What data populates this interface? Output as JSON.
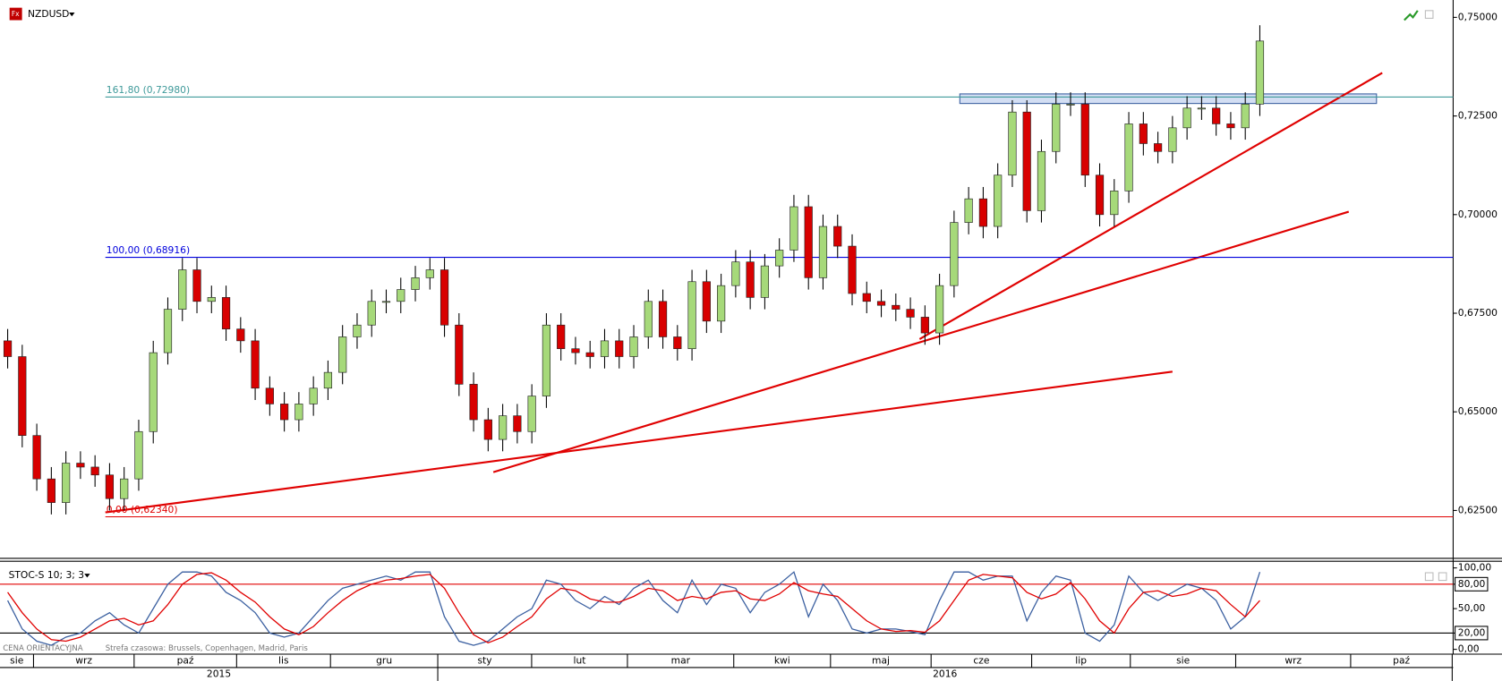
{
  "chart_data": [
    {
      "type": "candlestick",
      "title": "NZDUSD",
      "open": [
        0.668,
        0.664,
        0.644,
        0.633,
        0.627,
        0.637,
        0.636,
        0.634,
        0.628,
        0.633,
        0.645,
        0.665,
        0.676,
        0.686,
        0.678,
        0.679,
        0.671,
        0.668,
        0.656,
        0.652,
        0.648,
        0.652,
        0.656,
        0.66,
        0.669,
        0.672,
        0.678,
        0.678,
        0.681,
        0.684,
        0.686,
        0.672,
        0.657,
        0.648,
        0.643,
        0.649,
        0.645,
        0.654,
        0.672,
        0.666,
        0.665,
        0.664,
        0.668,
        0.664,
        0.669,
        0.678,
        0.669,
        0.666,
        0.683,
        0.673,
        0.682,
        0.688,
        0.679,
        0.687,
        0.691,
        0.702,
        0.684,
        0.697,
        0.692,
        0.68,
        0.678,
        0.677,
        0.676,
        0.674,
        0.67,
        0.682,
        0.698,
        0.704,
        0.697,
        0.71,
        0.726,
        0.701,
        0.716,
        0.728,
        0.728,
        0.71,
        0.7,
        0.706,
        0.723,
        0.718,
        0.716,
        0.722,
        0.727,
        0.727,
        0.723,
        0.722,
        0.728
      ],
      "high": [
        0.671,
        0.667,
        0.647,
        0.636,
        0.64,
        0.64,
        0.639,
        0.637,
        0.636,
        0.648,
        0.668,
        0.679,
        0.689,
        0.689,
        0.682,
        0.682,
        0.674,
        0.671,
        0.659,
        0.655,
        0.655,
        0.659,
        0.663,
        0.672,
        0.675,
        0.681,
        0.681,
        0.684,
        0.687,
        0.689,
        0.689,
        0.675,
        0.66,
        0.651,
        0.652,
        0.652,
        0.657,
        0.675,
        0.675,
        0.669,
        0.668,
        0.671,
        0.671,
        0.672,
        0.681,
        0.681,
        0.672,
        0.686,
        0.686,
        0.685,
        0.691,
        0.691,
        0.69,
        0.694,
        0.705,
        0.705,
        0.7,
        0.7,
        0.695,
        0.683,
        0.681,
        0.68,
        0.679,
        0.677,
        0.685,
        0.701,
        0.707,
        0.707,
        0.713,
        0.729,
        0.729,
        0.719,
        0.731,
        0.731,
        0.731,
        0.713,
        0.709,
        0.726,
        0.726,
        0.721,
        0.725,
        0.73,
        0.73,
        0.73,
        0.726,
        0.731,
        0.748
      ],
      "low": [
        0.661,
        0.641,
        0.63,
        0.624,
        0.624,
        0.633,
        0.631,
        0.625,
        0.625,
        0.63,
        0.642,
        0.662,
        0.673,
        0.675,
        0.675,
        0.668,
        0.665,
        0.653,
        0.649,
        0.645,
        0.645,
        0.649,
        0.653,
        0.657,
        0.666,
        0.669,
        0.675,
        0.675,
        0.678,
        0.681,
        0.669,
        0.654,
        0.645,
        0.64,
        0.64,
        0.642,
        0.642,
        0.651,
        0.663,
        0.662,
        0.661,
        0.661,
        0.661,
        0.661,
        0.666,
        0.666,
        0.663,
        0.663,
        0.67,
        0.67,
        0.679,
        0.676,
        0.676,
        0.684,
        0.688,
        0.681,
        0.681,
        0.689,
        0.677,
        0.675,
        0.674,
        0.673,
        0.671,
        0.667,
        0.667,
        0.679,
        0.695,
        0.694,
        0.694,
        0.707,
        0.698,
        0.698,
        0.713,
        0.725,
        0.707,
        0.697,
        0.697,
        0.703,
        0.715,
        0.713,
        0.713,
        0.719,
        0.724,
        0.72,
        0.719,
        0.719,
        0.725
      ],
      "close": [
        0.664,
        0.644,
        0.633,
        0.627,
        0.637,
        0.636,
        0.634,
        0.628,
        0.633,
        0.645,
        0.665,
        0.676,
        0.686,
        0.678,
        0.679,
        0.671,
        0.668,
        0.656,
        0.652,
        0.648,
        0.652,
        0.656,
        0.66,
        0.669,
        0.672,
        0.678,
        0.678,
        0.681,
        0.684,
        0.686,
        0.672,
        0.657,
        0.648,
        0.643,
        0.649,
        0.645,
        0.654,
        0.672,
        0.666,
        0.665,
        0.664,
        0.668,
        0.664,
        0.669,
        0.678,
        0.669,
        0.666,
        0.683,
        0.673,
        0.682,
        0.688,
        0.679,
        0.687,
        0.691,
        0.702,
        0.684,
        0.697,
        0.692,
        0.68,
        0.678,
        0.677,
        0.676,
        0.674,
        0.67,
        0.682,
        0.698,
        0.704,
        0.697,
        0.71,
        0.726,
        0.701,
        0.716,
        0.728,
        0.728,
        0.71,
        0.7,
        0.706,
        0.723,
        0.718,
        0.716,
        0.722,
        0.727,
        0.727,
        0.723,
        0.722,
        0.728,
        0.744
      ],
      "up_color": "#a6d97a",
      "down_color": "#d80000",
      "ylim": [
        0.6131,
        0.7539
      ],
      "yticks": [
        {
          "value": 0.625,
          "label": "0,62500"
        },
        {
          "value": 0.65,
          "label": "0,65000"
        },
        {
          "value": 0.675,
          "label": "0,67500"
        },
        {
          "value": 0.7,
          "label": "0,70000"
        },
        {
          "value": 0.725,
          "label": "0,72500"
        },
        {
          "value": 0.75,
          "label": "0,75000"
        }
      ],
      "fib_levels": [
        {
          "label": "161,80 (0,72980)",
          "value": 0.7298,
          "color": "#3f9a9a"
        },
        {
          "label": "100,00 (0,68916)",
          "value": 0.68916,
          "color": "#0000dd"
        },
        {
          "label": "0,00 (0,62340)",
          "value": 0.6234,
          "color": "#e00000"
        }
      ]
    },
    {
      "type": "line",
      "title": "STOC-S 10; 3; 3",
      "series": [
        {
          "color": "#3a5fa0",
          "values": [
            60,
            25,
            10,
            5,
            15,
            20,
            35,
            45,
            30,
            20,
            50,
            80,
            95,
            95,
            90,
            70,
            60,
            45,
            20,
            15,
            20,
            40,
            60,
            75,
            80,
            85,
            90,
            85,
            95,
            95,
            40,
            10,
            5,
            10,
            25,
            40,
            50,
            85,
            80,
            60,
            50,
            65,
            55,
            75,
            85,
            60,
            45,
            85,
            55,
            80,
            75,
            45,
            70,
            80,
            95,
            40,
            80,
            60,
            25,
            20,
            25,
            25,
            22,
            18,
            60,
            95,
            95,
            85,
            90,
            90,
            35,
            70,
            90,
            85,
            20,
            10,
            30,
            90,
            70,
            60,
            70,
            80,
            75,
            60,
            25,
            40,
            95
          ]
        },
        {
          "color": "#e00000",
          "values": [
            70,
            45,
            25,
            12,
            10,
            15,
            25,
            35,
            38,
            30,
            35,
            55,
            80,
            92,
            94,
            85,
            70,
            58,
            40,
            25,
            18,
            28,
            45,
            60,
            72,
            80,
            85,
            87,
            90,
            92,
            75,
            45,
            18,
            8,
            15,
            28,
            40,
            62,
            75,
            72,
            62,
            58,
            58,
            65,
            75,
            72,
            60,
            65,
            62,
            70,
            72,
            62,
            60,
            68,
            82,
            72,
            68,
            65,
            50,
            35,
            25,
            22,
            23,
            21,
            35,
            60,
            85,
            92,
            90,
            88,
            70,
            62,
            68,
            82,
            62,
            35,
            20,
            50,
            70,
            72,
            65,
            68,
            75,
            72,
            55,
            40,
            60
          ]
        }
      ],
      "ylim": [
        -4.7,
        108.2
      ],
      "yticks": [
        {
          "value": 0,
          "label": "0,00"
        },
        {
          "value": 20,
          "label": "20,00"
        },
        {
          "value": 50,
          "label": "50,00"
        },
        {
          "value": 80,
          "label": "80,00"
        },
        {
          "value": 100,
          "label": "100,00"
        }
      ],
      "reference_lines": [
        {
          "value": 80,
          "color": "#e00000"
        },
        {
          "value": 20,
          "color": "#000000"
        }
      ]
    }
  ],
  "time_axis": {
    "months": [
      "sie",
      "wrz",
      "paź",
      "lis",
      "gru",
      "sty",
      "lut",
      "mar",
      "kwi",
      "maj",
      "cze",
      "lip",
      "sie",
      "wrz",
      "paź"
    ],
    "years": [
      "2015",
      "2016"
    ]
  },
  "footer": {
    "price_type": "CENA ORIENTACYJNA",
    "timezone": "Strefa czasowa: Brussels, Copenhagen, Madrid, Paris"
  }
}
